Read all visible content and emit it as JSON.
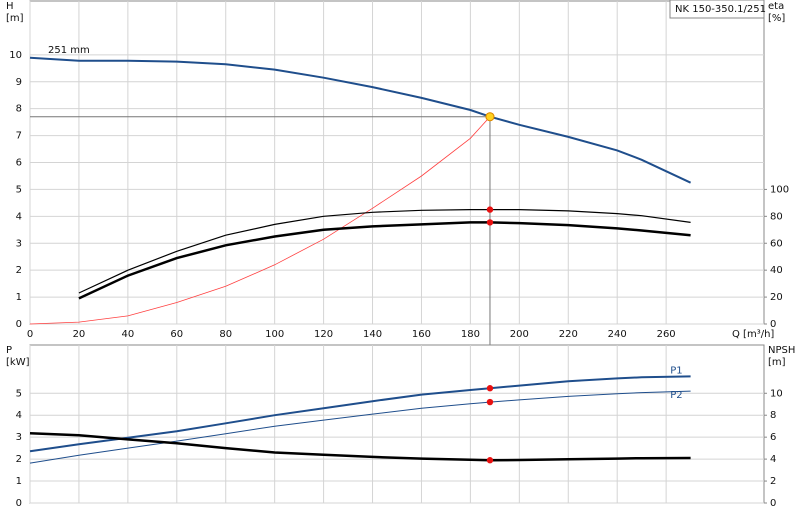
{
  "chart_data": [
    {
      "type": "line",
      "title": "NK 150-350.1/251",
      "ylabel": [
        "H",
        "[m]"
      ],
      "y2label": [
        "eta",
        "[%]"
      ],
      "xlabel": "Q [m³/h]",
      "x": [
        0,
        20,
        40,
        60,
        80,
        100,
        120,
        140,
        160,
        180,
        188,
        200,
        220,
        240,
        250,
        270
      ],
      "xlim": [
        0,
        300
      ],
      "xticks": [
        0,
        20,
        40,
        60,
        80,
        100,
        120,
        140,
        160,
        180,
        200,
        220,
        240,
        260
      ],
      "ylim": [
        0,
        12
      ],
      "yticks": [
        0,
        1,
        2,
        3,
        4,
        5,
        6,
        7,
        8,
        9,
        10
      ],
      "y2lim": [
        0,
        240
      ],
      "y2ticks": [
        0,
        20,
        40,
        60,
        80,
        100
      ],
      "grid": true,
      "duty_point": 188,
      "series": [
        {
          "color": "#ff4040",
          "values": [
            0,
            0.07,
            0.3,
            0.8,
            1.4,
            2.2,
            3.15,
            4.3,
            5.5,
            6.9,
            7.7,
            null,
            null,
            null,
            null,
            null
          ]
        },
        {
          "name": "251 mm",
          "color": "#1f4e8c",
          "values": [
            9.89,
            9.78,
            9.78,
            9.75,
            9.65,
            9.45,
            9.15,
            8.8,
            8.4,
            7.95,
            7.7,
            7.4,
            6.95,
            6.45,
            6.1,
            5.25
          ]
        },
        {
          "color": "#000000",
          "axis": "y2",
          "values": [
            null,
            23,
            40,
            54,
            66,
            74,
            80,
            83,
            84.5,
            85,
            85,
            85,
            84,
            82,
            80.5,
            75.5
          ]
        },
        {
          "color": "#000000",
          "axis": "y2",
          "values": [
            null,
            19,
            36,
            49,
            58.5,
            65,
            70,
            72.5,
            74,
            75.5,
            75.5,
            75,
            73.5,
            71,
            69.5,
            66
          ]
        }
      ]
    },
    {
      "type": "line",
      "ylabel": [
        "P",
        "[kW]"
      ],
      "y2label": [
        "NPSH",
        "[m]"
      ],
      "x": [
        0,
        20,
        40,
        60,
        80,
        100,
        120,
        140,
        160,
        180,
        188,
        200,
        220,
        240,
        250,
        270
      ],
      "xlim": [
        0,
        300
      ],
      "xticks": [
        0,
        20,
        40,
        60,
        80,
        100,
        120,
        140,
        160,
        180,
        200,
        220,
        240,
        260
      ],
      "ylim": [
        0,
        7.2
      ],
      "yticks": [
        0,
        1,
        2,
        3,
        4,
        5
      ],
      "y2lim": [
        0,
        14.4
      ],
      "y2ticks": [
        0,
        2,
        4,
        6,
        8,
        10
      ],
      "grid": true,
      "series": [
        {
          "name": "P1",
          "color": "#1f4e8c",
          "values": [
            2.36,
            2.68,
            2.97,
            3.27,
            3.63,
            4.0,
            4.32,
            4.64,
            4.94,
            5.15,
            5.23,
            5.35,
            5.55,
            5.68,
            5.73,
            5.77
          ]
        },
        {
          "name": "P2",
          "color": "#1f4e8c",
          "values": [
            1.82,
            2.18,
            2.5,
            2.82,
            3.16,
            3.5,
            3.78,
            4.05,
            4.32,
            4.52,
            4.6,
            4.7,
            4.86,
            4.98,
            5.03,
            5.1
          ]
        },
        {
          "color": "#000000",
          "axis": "y2",
          "values": [
            6.36,
            6.18,
            5.8,
            5.45,
            5.0,
            4.6,
            4.4,
            4.2,
            4.05,
            3.95,
            3.9,
            3.92,
            3.98,
            4.05,
            4.08,
            4.1
          ]
        }
      ]
    }
  ]
}
